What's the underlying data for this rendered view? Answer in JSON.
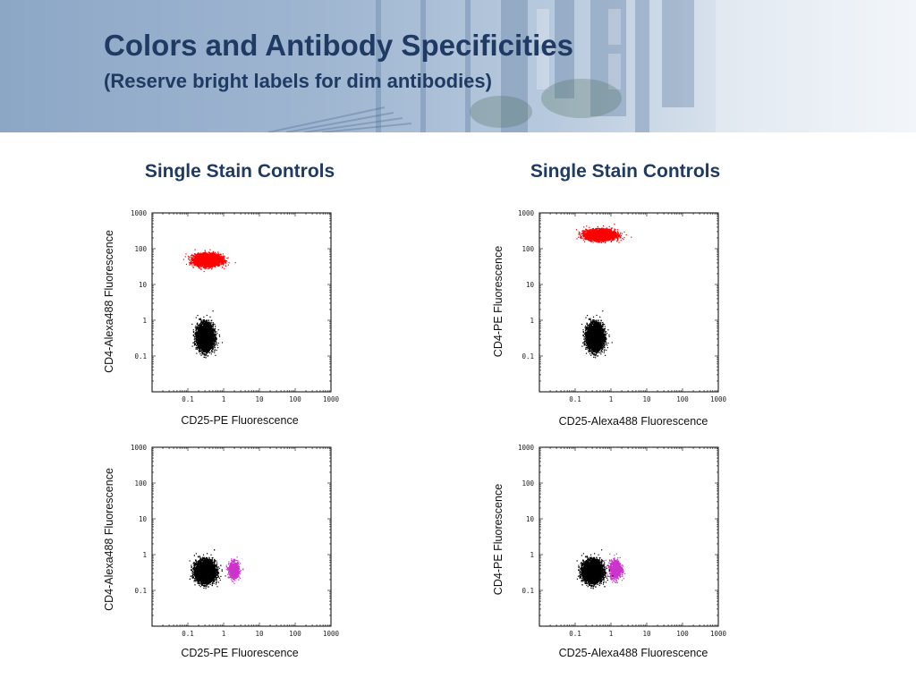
{
  "slide": {
    "title": "Colors and Antibody Specificities",
    "subtitle": "(Reserve bright labels for dim antibodies)",
    "column_titles": [
      "Single Stain Controls",
      "Single Stain Controls"
    ]
  },
  "colors": {
    "title_text": "#1f3a63",
    "population_main": "#000000",
    "population_red": "#ff0000",
    "population_magenta": "#cc33cc"
  },
  "chart_data": [
    {
      "type": "scatter",
      "xlabel": "CD25-PE Fluorescence",
      "ylabel": "CD4-Alexa488 Fluorescence",
      "x_scale": "log",
      "y_scale": "log",
      "xlim": [
        0.01,
        1000
      ],
      "ylim": [
        0.01,
        1000
      ],
      "x_ticks": [
        "0.1",
        "1",
        "10",
        "100",
        "1000"
      ],
      "y_ticks": [
        "0.1",
        "1",
        "10",
        "100",
        "1000"
      ],
      "populations": [
        {
          "center": [
            0.35,
            50
          ],
          "spread": [
            0.18,
            0.08
          ],
          "count": 4000,
          "color": "#ff0000"
        },
        {
          "center": [
            0.3,
            0.35
          ],
          "spread": [
            0.11,
            0.17
          ],
          "count": 6000,
          "color": "#000000"
        }
      ]
    },
    {
      "type": "scatter",
      "xlabel": "CD25-Alexa488 Fluorescence",
      "ylabel": "CD4-PE Fluorescence",
      "x_scale": "log",
      "y_scale": "log",
      "xlim": [
        0.01,
        1000
      ],
      "ylim": [
        0.01,
        1000
      ],
      "x_ticks": [
        "0.1",
        "1",
        "10",
        "100",
        "1000"
      ],
      "y_ticks": [
        "0.1",
        "1",
        "10",
        "100",
        "1000"
      ],
      "populations": [
        {
          "center": [
            0.5,
            250
          ],
          "spread": [
            0.2,
            0.07
          ],
          "count": 4000,
          "color": "#ff0000"
        },
        {
          "center": [
            0.35,
            0.35
          ],
          "spread": [
            0.11,
            0.17
          ],
          "count": 6000,
          "color": "#000000"
        }
      ]
    },
    {
      "type": "scatter",
      "xlabel": "CD25-PE Fluorescence",
      "ylabel": "CD4-Alexa488 Fluorescence",
      "x_scale": "log",
      "y_scale": "log",
      "xlim": [
        0.01,
        1000
      ],
      "ylim": [
        0.01,
        1000
      ],
      "x_ticks": [
        "0.1",
        "1",
        "10",
        "100",
        "1000"
      ],
      "y_ticks": [
        "0.1",
        "1",
        "10",
        "100",
        "1000"
      ],
      "populations": [
        {
          "center": [
            1.9,
            0.38
          ],
          "spread": [
            0.07,
            0.11
          ],
          "count": 900,
          "color": "#cc33cc"
        },
        {
          "center": [
            0.3,
            0.35
          ],
          "spread": [
            0.13,
            0.14
          ],
          "count": 7000,
          "color": "#000000"
        }
      ]
    },
    {
      "type": "scatter",
      "xlabel": "CD25-Alexa488 Fluorescence",
      "ylabel": "CD4-PE Fluorescence",
      "x_scale": "log",
      "y_scale": "log",
      "xlim": [
        0.01,
        1000
      ],
      "ylim": [
        0.01,
        1000
      ],
      "x_ticks": [
        "0.1",
        "1",
        "10",
        "100",
        "1000"
      ],
      "y_ticks": [
        "0.1",
        "1",
        "10",
        "100",
        "1000"
      ],
      "populations": [
        {
          "center": [
            1.3,
            0.4
          ],
          "spread": [
            0.08,
            0.12
          ],
          "count": 1200,
          "color": "#cc33cc"
        },
        {
          "center": [
            0.3,
            0.35
          ],
          "spread": [
            0.13,
            0.14
          ],
          "count": 7000,
          "color": "#000000"
        }
      ]
    }
  ]
}
